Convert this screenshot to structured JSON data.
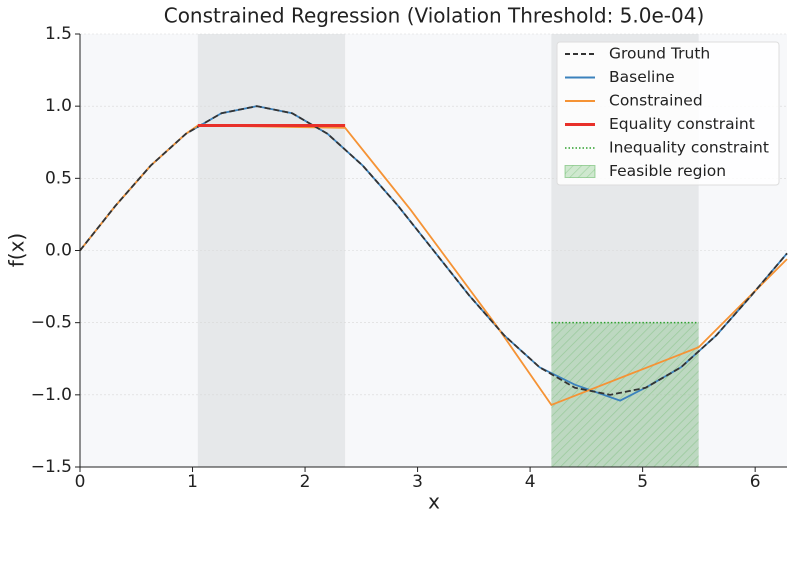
{
  "chart_data": {
    "type": "line",
    "title": "Constrained Regression (Violation Threshold: 5.0e-04)",
    "xlabel": "x",
    "ylabel": "f(x)",
    "xlim": [
      0,
      6.283
    ],
    "ylim": [
      -1.5,
      1.5
    ],
    "xticks": [
      0,
      1,
      2,
      3,
      4,
      5,
      6
    ],
    "yticks": [
      {
        "value": -1.5,
        "label": "−1.5"
      },
      {
        "value": -1,
        "label": "−1.0"
      },
      {
        "value": -0.5,
        "label": "−0.5"
      },
      {
        "value": 0,
        "label": "0.0"
      },
      0.5,
      {
        "value": 1,
        "label": "1.0"
      },
      1.5
    ],
    "grid": true,
    "legend": "upper right",
    "series": [
      {
        "name": "Ground Truth",
        "color": "#333333",
        "dash": true,
        "x": [
          0,
          0.314,
          0.628,
          0.942,
          1.257,
          1.571,
          1.885,
          2.199,
          2.513,
          2.827,
          3.142,
          3.456,
          3.77,
          4.084,
          4.398,
          4.712,
          5.027,
          5.341,
          5.655,
          5.969,
          6.283
        ],
        "values": [
          0,
          0.309,
          0.588,
          0.809,
          0.951,
          1,
          0.951,
          0.809,
          0.588,
          0.309,
          0,
          -0.309,
          -0.588,
          -0.809,
          -0.951,
          -1,
          -0.951,
          -0.809,
          -0.588,
          -0.309,
          -0.02
        ]
      },
      {
        "name": "Baseline",
        "color": "#3b82bd",
        "x": [
          0,
          0.314,
          0.628,
          0.942,
          1.257,
          1.571,
          1.885,
          2.199,
          2.513,
          2.827,
          3.142,
          3.456,
          3.77,
          4.084,
          4.398,
          4.8,
          5.027,
          5.341,
          5.655,
          5.969,
          6.283
        ],
        "values": [
          0,
          0.309,
          0.588,
          0.809,
          0.951,
          1,
          0.951,
          0.809,
          0.588,
          0.309,
          0,
          -0.309,
          -0.588,
          -0.809,
          -0.93,
          -1.04,
          -0.95,
          -0.809,
          -0.588,
          -0.309,
          -0.02
        ]
      },
      {
        "name": "Constrained",
        "color": "#f59335",
        "x": [
          0,
          0.314,
          0.628,
          0.942,
          1.047,
          2.356,
          2.94,
          3.7,
          4.189,
          5.498,
          6.283
        ],
        "values": [
          0,
          0.309,
          0.588,
          0.809,
          0.866,
          0.85,
          0.28,
          -0.52,
          -1.07,
          -0.67,
          -0.06
        ]
      }
    ],
    "equality_constraint": {
      "name": "Equality constraint",
      "color": "#e8302a",
      "xrange": [
        1.047,
        2.356
      ],
      "value": 0.866
    },
    "inequality_constraint": {
      "name": "Inequality constraint",
      "color": "#2ca02c",
      "xrange": [
        4.189,
        5.498
      ],
      "value": -0.5
    },
    "feasible_region": {
      "name": "Feasible region",
      "color": "#2ca02c"
    }
  }
}
